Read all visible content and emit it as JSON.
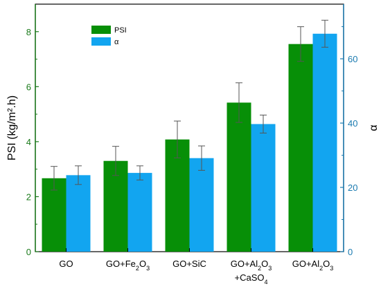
{
  "chart_data": {
    "type": "bar",
    "categories": [
      {
        "main": "GO"
      },
      {
        "main": "GO+Fe",
        "sub": "2",
        "tail": "O",
        "sub2": "3"
      },
      {
        "main": "GO+SiC"
      },
      {
        "main": "GO+Al",
        "sub": "2",
        "tail": "O",
        "sub2": "3",
        "line2": "+CaSO",
        "line2sub": "4"
      },
      {
        "main": "GO+Al",
        "sub": "2",
        "tail": "O",
        "sub2": "3"
      }
    ],
    "series": [
      {
        "name": "PSI",
        "axis": "left",
        "color": "#078f07",
        "values": [
          2.67,
          3.3,
          4.08,
          5.42,
          7.55
        ],
        "errors": [
          0.43,
          0.53,
          0.67,
          0.72,
          0.63
        ]
      },
      {
        "name": "α",
        "axis": "right",
        "color": "#12a5f0",
        "values": [
          23.8,
          24.5,
          29.1,
          39.7,
          67.8
        ],
        "errors": [
          2.9,
          2.2,
          3.8,
          2.8,
          4.2
        ]
      }
    ],
    "ylabel": "PSI (kg/m².h)",
    "y2label": "α",
    "ylim": [
      0,
      9
    ],
    "y2lim": [
      0,
      77
    ],
    "yticks": [
      0,
      2,
      4,
      6,
      8
    ],
    "y2ticks": [
      0,
      20,
      40,
      60
    ],
    "legend_position": "top-left",
    "grid": false,
    "left_axis_color": "#1a7a1a",
    "right_axis_color": "#1a7ab0"
  }
}
